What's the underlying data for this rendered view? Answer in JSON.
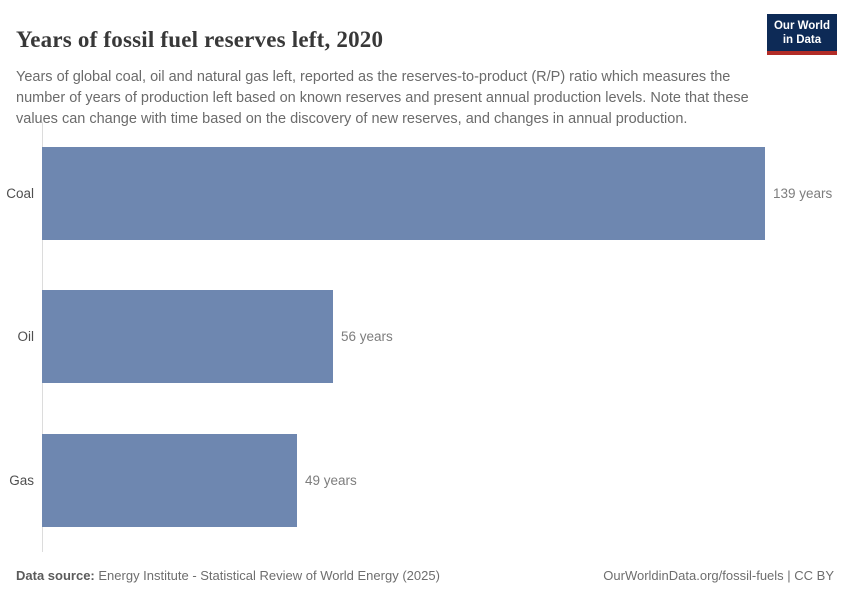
{
  "header": {
    "title": "Years of fossil fuel reserves left, 2020",
    "subtitle": "Years of global coal, oil and natural gas left, reported as the reserves-to-product (R/P) ratio which measures the number of years of production left based on known reserves and present annual production levels. Note that these values can change with time based on the discovery of new reserves, and changes in annual production.",
    "logo": {
      "line1": "Our World",
      "line2": "in Data",
      "bg_color": "#0d2a56",
      "stripe_color": "#b22c27"
    }
  },
  "chart_data": {
    "type": "bar",
    "orientation": "horizontal",
    "title": "Years of fossil fuel reserves left, 2020",
    "categories": [
      "Coal",
      "Oil",
      "Gas"
    ],
    "values": [
      139,
      56,
      49
    ],
    "value_labels": [
      "139 years",
      "56 years",
      "49 years"
    ],
    "unit": "years",
    "xlim": [
      0,
      139
    ],
    "bar_color": "#6e87b0",
    "axis_line_color": "#dcdcdc",
    "grid": false,
    "legend": "none"
  },
  "footer": {
    "source_label": "Data source:",
    "source_text": "Energy Institute - Statistical Review of World Energy (2025)",
    "attribution": "OurWorldinData.org/fossil-fuels | CC BY"
  }
}
